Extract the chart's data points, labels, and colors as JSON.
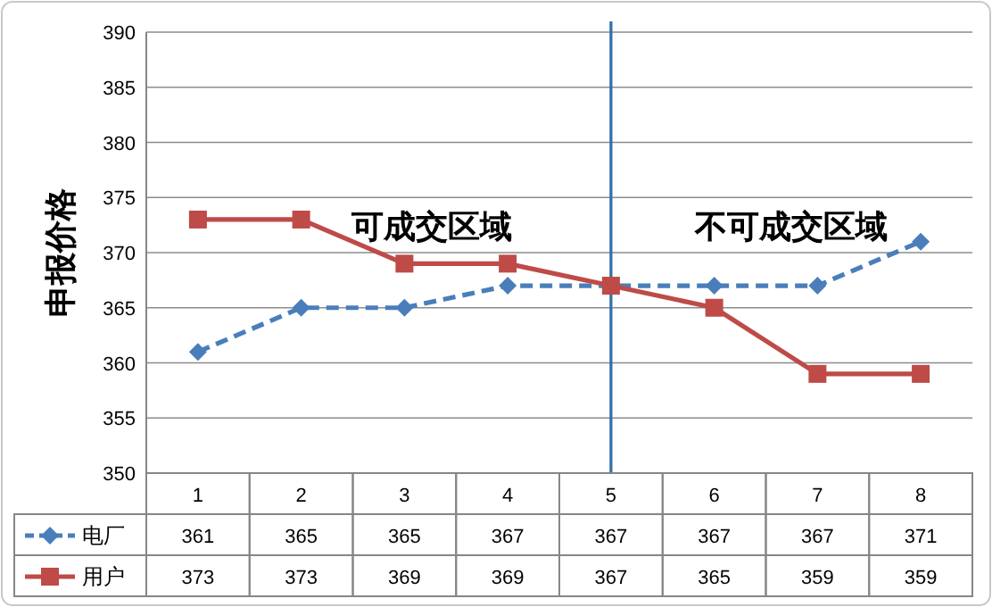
{
  "chart_data": {
    "type": "line",
    "ylabel": "申报价格",
    "categories": [
      "1",
      "2",
      "3",
      "4",
      "5",
      "6",
      "7",
      "8"
    ],
    "series": [
      {
        "name": "电厂",
        "color": "#4a7ebb",
        "values": [
          361,
          365,
          365,
          367,
          367,
          367,
          367,
          371
        ],
        "marker": "diamond",
        "line_style": "dashed"
      },
      {
        "name": "用户",
        "color": "#be4b48",
        "values": [
          373,
          373,
          369,
          369,
          367,
          365,
          359,
          359
        ],
        "marker": "square",
        "line_style": "solid"
      }
    ],
    "ylim": [
      350,
      390
    ],
    "yticks": [
      350,
      355,
      360,
      365,
      370,
      375,
      380,
      385,
      390
    ],
    "grid": "y",
    "legend": "bottom",
    "data_labels": true,
    "ref_lines": [
      {
        "axis": "x",
        "value": "5",
        "color": "#2e6fa7"
      }
    ],
    "annotations": [
      "可成交区域",
      "不可成交区域"
    ]
  }
}
